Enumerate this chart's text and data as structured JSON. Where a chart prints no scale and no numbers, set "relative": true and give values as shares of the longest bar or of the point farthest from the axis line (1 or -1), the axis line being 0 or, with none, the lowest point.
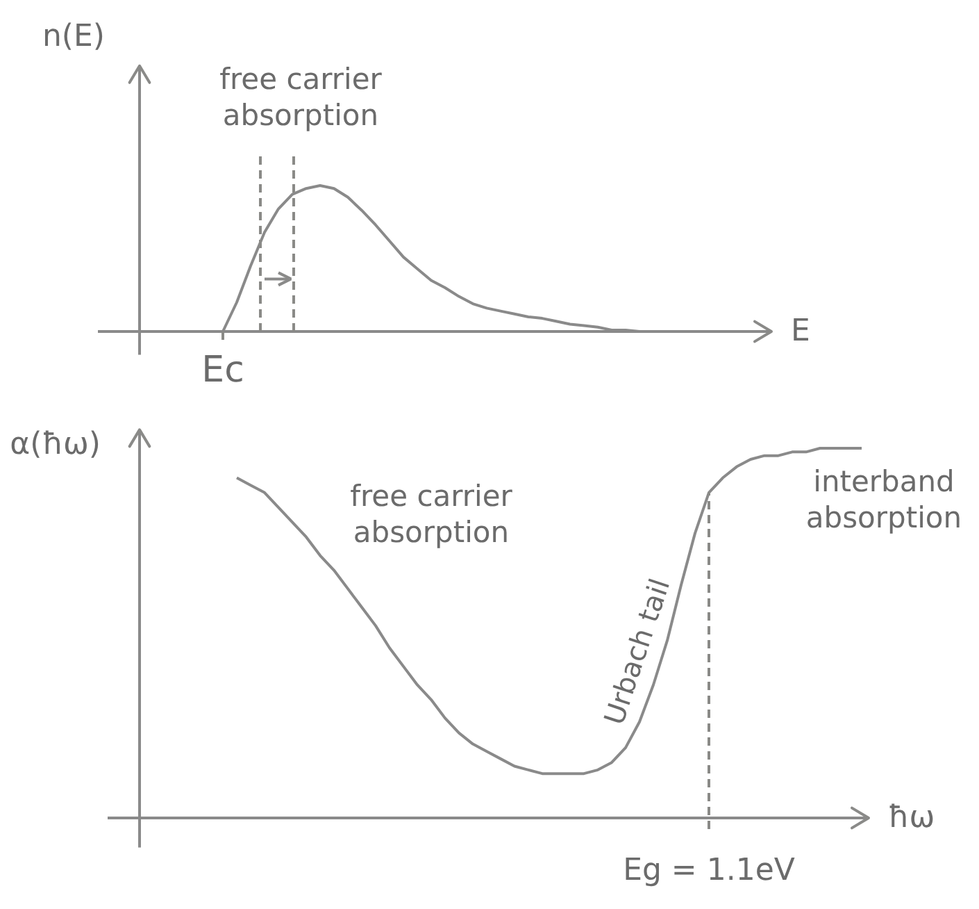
{
  "chart_data": [
    {
      "type": "line",
      "ylabel": "n(E)",
      "xlabel": "E",
      "relative": true,
      "color": "#8a8a8a",
      "categories": [
        null,
        null,
        null,
        null,
        null,
        null,
        null,
        null,
        null,
        null,
        null,
        null,
        null,
        null,
        null,
        null,
        null,
        null,
        null,
        null,
        null,
        null,
        null,
        null,
        null,
        null,
        null,
        null,
        null,
        null,
        null,
        null,
        null,
        null,
        null,
        null,
        null,
        null,
        null,
        null,
        null,
        null,
        null,
        null,
        null
      ],
      "values": [
        null,
        null,
        null,
        null,
        null,
        0,
        0.2,
        0.45,
        0.68,
        0.84,
        0.94,
        0.98,
        1.0,
        0.98,
        0.92,
        0.83,
        0.73,
        0.62,
        0.51,
        0.43,
        0.35,
        0.3,
        0.24,
        0.19,
        0.16,
        0.14,
        0.12,
        0.1,
        0.09,
        0.07,
        0.05,
        0.04,
        0.03,
        0.01,
        0.01,
        0,
        0,
        null,
        null,
        null,
        null,
        null,
        null,
        null,
        null
      ],
      "annotations": [
        "free carrier absorption",
        "Ec"
      ]
    },
    {
      "type": "line",
      "ylabel": "α(ħω)",
      "xlabel": "ħω",
      "relative": true,
      "color": "#8a8a8a",
      "categories": [
        null,
        null,
        null,
        null,
        null,
        null,
        null,
        null,
        null,
        null,
        null,
        null,
        null,
        null,
        null,
        null,
        null,
        null,
        null,
        null,
        null,
        null,
        null,
        null,
        null,
        null,
        null,
        null,
        null,
        null,
        null,
        null,
        null,
        null,
        null,
        null,
        null,
        null,
        null,
        null,
        null,
        null,
        null,
        null,
        null,
        null,
        null,
        null,
        null,
        null,
        null,
        null
      ],
      "values": [
        null,
        null,
        null,
        null,
        null,
        null,
        0.92,
        0.9,
        0.88,
        0.84,
        0.8,
        0.76,
        0.71,
        0.67,
        0.62,
        0.57,
        0.52,
        0.46,
        0.41,
        0.36,
        0.32,
        0.27,
        0.23,
        0.2,
        0.18,
        0.16,
        0.14,
        0.13,
        0.12,
        0.12,
        0.12,
        0.12,
        0.13,
        0.15,
        0.19,
        0.26,
        0.36,
        0.48,
        0.63,
        0.77,
        0.88,
        0.92,
        0.95,
        0.97,
        0.98,
        0.98,
        0.99,
        0.99,
        1.0,
        1.0,
        1.0,
        1.0
      ],
      "annotations": [
        "free carrier absorption",
        "Urbach tail",
        "interband absorption",
        "Eg = 1.1eV"
      ]
    }
  ]
}
